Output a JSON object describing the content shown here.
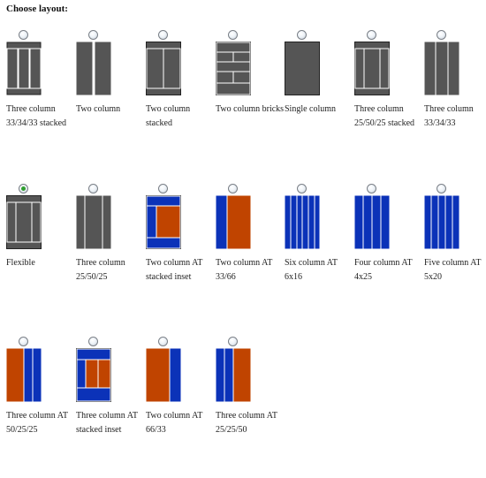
{
  "title": "Choose layout:",
  "colors": {
    "gray": "#555555",
    "blue": "#0b32b8",
    "orange": "#c04400",
    "selected_dot": "#2f9e2f"
  },
  "layouts": [
    {
      "label": "Three column 33/34/33 stacked",
      "selected": false,
      "icon": "three-col-stacked-thumbnail"
    },
    {
      "label": "Two column",
      "selected": false,
      "icon": "two-col-thumbnail"
    },
    {
      "label": "Two column stacked",
      "selected": false,
      "icon": "two-col-stacked-thumbnail"
    },
    {
      "label": "Two column bricks",
      "selected": false,
      "icon": "two-col-bricks-thumbnail"
    },
    {
      "label": "Single column",
      "selected": false,
      "icon": "single-col-thumbnail"
    },
    {
      "label": "Three column 25/50/25 stacked",
      "selected": false,
      "icon": "three-col-25-50-25-stacked-thumbnail"
    },
    {
      "label": "Three column 33/34/33",
      "selected": false,
      "icon": "three-col-thumbnail"
    },
    {
      "label": "Flexible",
      "selected": true,
      "icon": "flexible-thumbnail"
    },
    {
      "label": "Three column 25/50/25",
      "selected": false,
      "icon": "three-col-25-50-25-thumbnail"
    },
    {
      "label": "Two column AT stacked inset",
      "selected": false,
      "icon": "at-two-col-stacked-inset-thumbnail"
    },
    {
      "label": "Two column AT 33/66",
      "selected": false,
      "icon": "at-two-col-33-66-thumbnail"
    },
    {
      "label": "Six column AT 6x16",
      "selected": false,
      "icon": "at-six-col-thumbnail"
    },
    {
      "label": "Four column AT 4x25",
      "selected": false,
      "icon": "at-four-col-thumbnail"
    },
    {
      "label": "Five column AT 5x20",
      "selected": false,
      "icon": "at-five-col-thumbnail"
    },
    {
      "label": "Three column AT 50/25/25",
      "selected": false,
      "icon": "at-three-col-50-25-25-thumbnail"
    },
    {
      "label": "Three column AT stacked inset",
      "selected": false,
      "icon": "at-three-col-stacked-inset-thumbnail"
    },
    {
      "label": "Two column AT 66/33",
      "selected": false,
      "icon": "at-two-col-66-33-thumbnail"
    },
    {
      "label": "Three column AT 25/25/50",
      "selected": false,
      "icon": "at-three-col-25-25-50-thumbnail"
    }
  ]
}
